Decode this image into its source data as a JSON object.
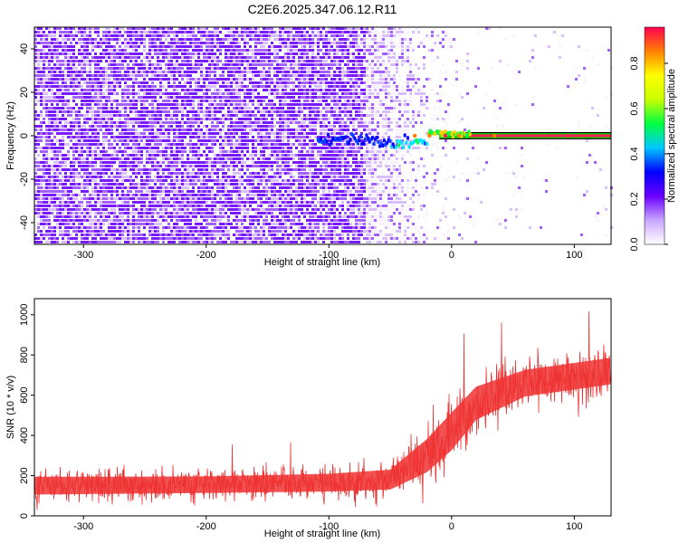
{
  "title": "C2E6.2025.347.06.12.R11",
  "colors": {
    "snr_line": "#ef3333",
    "palette": [
      "#f7f0ff",
      "#d6b8ff",
      "#9b50ff",
      "#6a00ff",
      "#0000ff",
      "#00e5ff",
      "#00ff40",
      "#ffff00",
      "#ff8000",
      "#ff0050"
    ]
  },
  "chart_data": [
    {
      "type": "heatmap",
      "xlabel": "Height of straight line (km)",
      "ylabel": "Frequency (Hz)",
      "xlim": [
        -340,
        130
      ],
      "ylim": [
        -50,
        50
      ],
      "xticks": [
        -300,
        -200,
        -100,
        0,
        100
      ],
      "yticks": [
        -40,
        -20,
        0,
        20,
        40
      ],
      "grid": false,
      "colorbar": {
        "label": "Normalized spectral amplitude",
        "range": [
          0,
          1
        ],
        "ticks": [
          "0.0",
          "0.2",
          "0.4",
          "0.6",
          "0.8"
        ]
      },
      "description_series": {
        "carrier_frequency_hz": [
          {
            "x": -100,
            "y": -1
          },
          {
            "x": -60,
            "y": -2
          },
          {
            "x": -40,
            "y": -4
          },
          {
            "x": -30,
            "y": -2
          },
          {
            "x": -10,
            "y": 0
          },
          {
            "x": 0,
            "y": 1
          },
          {
            "x": 50,
            "y": 0
          },
          {
            "x": 130,
            "y": 0
          }
        ]
      }
    },
    {
      "type": "line",
      "xlabel": "Height of straight line (km)",
      "ylabel": "SNR (10 * v/v)",
      "xlim": [
        -340,
        130
      ],
      "ylim": [
        0,
        1080
      ],
      "xticks": [
        -300,
        -200,
        -100,
        0,
        100
      ],
      "yticks": [
        0,
        200,
        400,
        600,
        800,
        1000
      ],
      "grid": false,
      "series": [
        {
          "envelope": [
            {
              "x": -340,
              "mean": 150,
              "spread": 80
            },
            {
              "x": -200,
              "mean": 155,
              "spread": 75
            },
            {
              "x": -100,
              "mean": 165,
              "spread": 80
            },
            {
              "x": -50,
              "mean": 180,
              "spread": 90
            },
            {
              "x": -20,
              "mean": 300,
              "spread": 150
            },
            {
              "x": 0,
              "mean": 420,
              "spread": 170
            },
            {
              "x": 20,
              "mean": 560,
              "spread": 150
            },
            {
              "x": 60,
              "mean": 660,
              "spread": 120
            },
            {
              "x": 130,
              "mean": 720,
              "spread": 120
            }
          ]
        }
      ]
    }
  ]
}
